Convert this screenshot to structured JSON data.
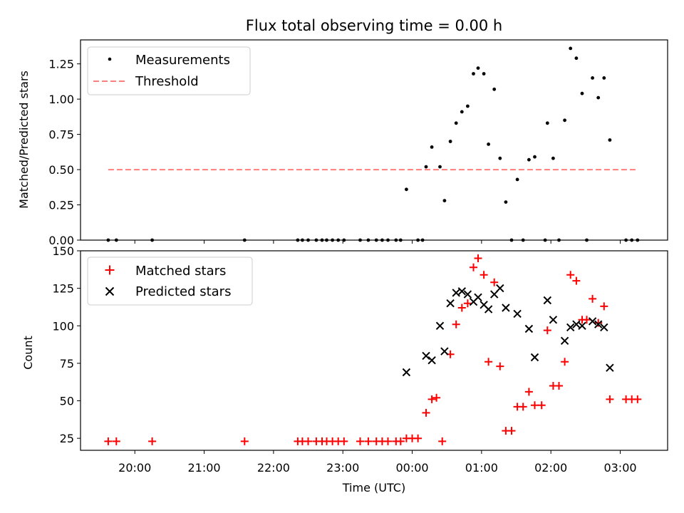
{
  "chart_data": [
    {
      "type": "scatter",
      "title": "Flux total observing time = 0.00 h",
      "xlabel": "",
      "ylabel": "Matched/Predicted stars",
      "ylim": [
        0,
        1.42
      ],
      "yticks": [
        "0.00",
        "0.25",
        "0.50",
        "0.75",
        "1.00",
        "1.25"
      ],
      "yticks_values": [
        0,
        0.25,
        0.5,
        0.75,
        1.0,
        1.25
      ],
      "legend_position": "top-left",
      "series": [
        {
          "name": "Measurements",
          "style": "dot",
          "color": "#000000",
          "points": [
            [
              "19:37",
              0.0
            ],
            [
              "19:44",
              0.0
            ],
            [
              "20:15",
              0.0
            ],
            [
              "21:35",
              0.0
            ],
            [
              "22:21",
              0.0
            ],
            [
              "22:25",
              0.0
            ],
            [
              "22:30",
              0.0
            ],
            [
              "22:37",
              0.0
            ],
            [
              "22:42",
              0.0
            ],
            [
              "22:46",
              0.0
            ],
            [
              "22:51",
              0.0
            ],
            [
              "22:56",
              0.0
            ],
            [
              "23:01",
              0.0
            ],
            [
              "23:15",
              0.0
            ],
            [
              "23:22",
              0.0
            ],
            [
              "23:29",
              0.0
            ],
            [
              "23:34",
              0.0
            ],
            [
              "23:39",
              0.0
            ],
            [
              "23:46",
              0.0
            ],
            [
              "23:50",
              0.0
            ],
            [
              "23:55",
              0.36
            ],
            [
              "24:05",
              0.0
            ],
            [
              "24:09",
              0.0
            ],
            [
              "24:12",
              0.52
            ],
            [
              "24:17",
              0.66
            ],
            [
              "24:24",
              0.52
            ],
            [
              "24:28",
              0.28
            ],
            [
              "24:33",
              0.7
            ],
            [
              "24:38",
              0.83
            ],
            [
              "24:43",
              0.91
            ],
            [
              "24:48",
              0.95
            ],
            [
              "24:53",
              1.18
            ],
            [
              "24:57",
              1.22
            ],
            [
              "25:02",
              1.18
            ],
            [
              "25:06",
              0.68
            ],
            [
              "25:11",
              1.07
            ],
            [
              "25:16",
              0.58
            ],
            [
              "25:21",
              0.27
            ],
            [
              "25:26",
              0.0
            ],
            [
              "25:31",
              0.43
            ],
            [
              "25:36",
              0.0
            ],
            [
              "25:41",
              0.57
            ],
            [
              "25:46",
              0.59
            ],
            [
              "25:55",
              0.0
            ],
            [
              "25:57",
              0.83
            ],
            [
              "26:02",
              0.58
            ],
            [
              "26:07",
              0.0
            ],
            [
              "26:12",
              0.85
            ],
            [
              "26:17",
              1.36
            ],
            [
              "26:22",
              1.29
            ],
            [
              "26:27",
              1.04
            ],
            [
              "26:31",
              0.0
            ],
            [
              "26:36",
              1.15
            ],
            [
              "26:41",
              1.01
            ],
            [
              "26:46",
              1.15
            ],
            [
              "26:51",
              0.71
            ],
            [
              "27:05",
              0.0
            ],
            [
              "27:10",
              0.0
            ],
            [
              "27:15",
              0.0
            ]
          ]
        },
        {
          "name": "Threshold",
          "style": "dashed",
          "color": "#ff7f7f",
          "points": [
            [
              "19:37",
              0.5
            ],
            [
              "27:15",
              0.5
            ]
          ]
        }
      ]
    },
    {
      "type": "scatter",
      "title": "",
      "xlabel": "Time (UTC)",
      "ylabel": "Count",
      "ylim": [
        17,
        150
      ],
      "yticks": [
        "25",
        "50",
        "75",
        "100",
        "125",
        "150"
      ],
      "yticks_values": [
        25,
        50,
        75,
        100,
        125,
        150
      ],
      "xlim": [
        "19:13",
        "27:41"
      ],
      "xticks": [
        "20:00",
        "21:00",
        "22:00",
        "23:00",
        "00:00",
        "01:00",
        "02:00",
        "03:00"
      ],
      "xticks_values": [
        "20:00",
        "21:00",
        "22:00",
        "23:00",
        "24:00",
        "25:00",
        "26:00",
        "27:00"
      ],
      "legend_position": "top-left",
      "series": [
        {
          "name": "Matched stars",
          "style": "plus",
          "color": "#ff0000",
          "points": [
            [
              "19:37",
              23
            ],
            [
              "19:44",
              23
            ],
            [
              "20:15",
              23
            ],
            [
              "21:35",
              23
            ],
            [
              "22:21",
              23
            ],
            [
              "22:25",
              23
            ],
            [
              "22:30",
              23
            ],
            [
              "22:37",
              23
            ],
            [
              "22:42",
              23
            ],
            [
              "22:46",
              23
            ],
            [
              "22:51",
              23
            ],
            [
              "22:56",
              23
            ],
            [
              "23:01",
              23
            ],
            [
              "23:15",
              23
            ],
            [
              "23:22",
              23
            ],
            [
              "23:29",
              23
            ],
            [
              "23:34",
              23
            ],
            [
              "23:39",
              23
            ],
            [
              "23:46",
              23
            ],
            [
              "23:50",
              23
            ],
            [
              "23:55",
              25
            ],
            [
              "24:00",
              25
            ],
            [
              "24:05",
              25
            ],
            [
              "24:12",
              42
            ],
            [
              "24:17",
              51
            ],
            [
              "24:21",
              52
            ],
            [
              "24:26",
              23
            ],
            [
              "24:33",
              81
            ],
            [
              "24:38",
              101
            ],
            [
              "24:43",
              112
            ],
            [
              "24:48",
              115
            ],
            [
              "24:53",
              139
            ],
            [
              "24:57",
              145
            ],
            [
              "25:02",
              134
            ],
            [
              "25:06",
              76
            ],
            [
              "25:11",
              129
            ],
            [
              "25:16",
              73
            ],
            [
              "25:21",
              30
            ],
            [
              "25:26",
              30
            ],
            [
              "25:31",
              46
            ],
            [
              "25:36",
              46
            ],
            [
              "25:41",
              56
            ],
            [
              "25:46",
              47
            ],
            [
              "25:52",
              47
            ],
            [
              "25:57",
              97
            ],
            [
              "26:02",
              60
            ],
            [
              "26:07",
              60
            ],
            [
              "26:12",
              76
            ],
            [
              "26:17",
              134
            ],
            [
              "26:22",
              130
            ],
            [
              "26:27",
              104
            ],
            [
              "26:31",
              104
            ],
            [
              "26:36",
              118
            ],
            [
              "26:41",
              102
            ],
            [
              "26:46",
              113
            ],
            [
              "26:51",
              51
            ],
            [
              "27:05",
              51
            ],
            [
              "27:10",
              51
            ],
            [
              "27:15",
              51
            ]
          ]
        },
        {
          "name": "Predicted stars",
          "style": "x",
          "color": "#000000",
          "points": [
            [
              "23:55",
              69
            ],
            [
              "24:12",
              80
            ],
            [
              "24:17",
              77
            ],
            [
              "24:24",
              100
            ],
            [
              "24:28",
              83
            ],
            [
              "24:33",
              115
            ],
            [
              "24:38",
              122
            ],
            [
              "24:43",
              123
            ],
            [
              "24:48",
              121
            ],
            [
              "24:53",
              116
            ],
            [
              "24:57",
              119
            ],
            [
              "25:02",
              114
            ],
            [
              "25:06",
              111
            ],
            [
              "25:11",
              121
            ],
            [
              "25:16",
              125
            ],
            [
              "25:21",
              112
            ],
            [
              "25:31",
              108
            ],
            [
              "25:41",
              98
            ],
            [
              "25:46",
              79
            ],
            [
              "25:57",
              117
            ],
            [
              "26:02",
              104
            ],
            [
              "26:12",
              90
            ],
            [
              "26:17",
              99
            ],
            [
              "26:22",
              101
            ],
            [
              "26:27",
              100
            ],
            [
              "26:36",
              103
            ],
            [
              "26:41",
              101
            ],
            [
              "26:46",
              99
            ],
            [
              "26:51",
              72
            ]
          ]
        }
      ]
    }
  ]
}
